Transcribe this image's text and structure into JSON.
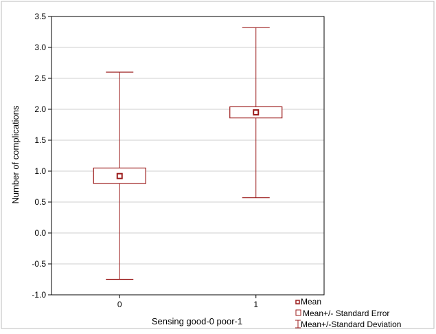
{
  "chart_data": {
    "type": "box",
    "title": "",
    "xlabel": "Sensing good-0 poor-1",
    "ylabel": "Number of complications",
    "categories": [
      "0",
      "1"
    ],
    "ylim": [
      -1.0,
      3.5
    ],
    "yticks": [
      "-1.0",
      "-0.5",
      "0.0",
      "0.5",
      "1.0",
      "1.5",
      "2.0",
      "2.5",
      "3.0",
      "3.5"
    ],
    "grid": true,
    "series": [
      {
        "category": "0",
        "mean": 0.92,
        "se_low": 0.8,
        "se_high": 1.05,
        "sd_low": -0.75,
        "sd_high": 2.6
      },
      {
        "category": "1",
        "mean": 1.95,
        "se_low": 1.86,
        "se_high": 2.04,
        "sd_low": 0.57,
        "sd_high": 3.32
      }
    ],
    "legend": {
      "placement": "bottom-right",
      "items": [
        "Mean",
        "Mean+/- Standard Error",
        "Mean+/-Standard Deviation"
      ]
    },
    "colors": {
      "series": "#9b1b1b",
      "grid": "#cfcfcf",
      "axis": "#000000"
    }
  }
}
